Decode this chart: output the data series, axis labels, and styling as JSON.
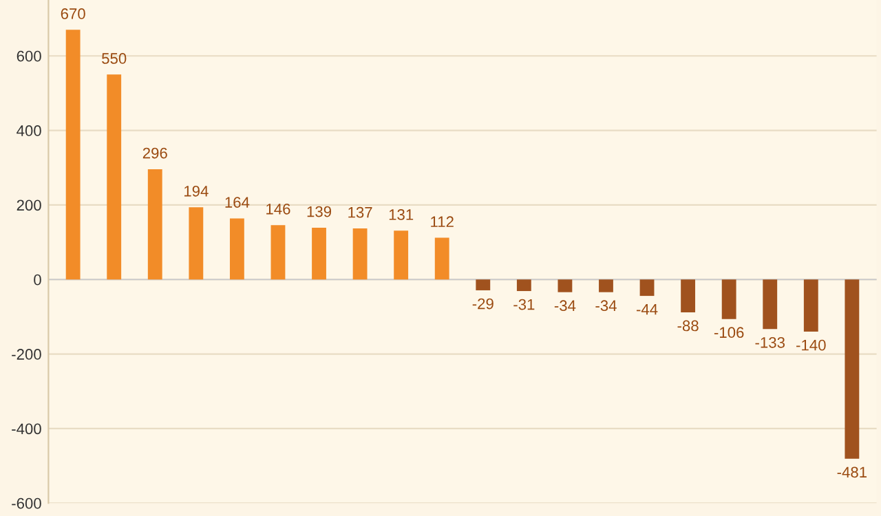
{
  "chart_data": {
    "type": "bar",
    "categories": [
      null,
      null,
      null,
      null,
      null,
      null,
      null,
      null,
      null,
      null,
      null,
      null,
      null,
      null,
      null,
      null,
      null,
      null,
      null,
      null
    ],
    "values": [
      670,
      550,
      296,
      194,
      164,
      146,
      139,
      137,
      131,
      112,
      -29,
      -31,
      -34,
      -34,
      -44,
      -88,
      -106,
      -133,
      -140,
      -481
    ],
    "colors": [
      "#f28c28",
      "#f28c28",
      "#f28c28",
      "#f28c28",
      "#f28c28",
      "#f28c28",
      "#f28c28",
      "#f28c28",
      "#f28c28",
      "#f28c28",
      "#a0521e",
      "#a0521e",
      "#a0521e",
      "#a0521e",
      "#a0521e",
      "#a0521e",
      "#a0521e",
      "#a0521e",
      "#a0521e",
      "#a0521e"
    ],
    "ylim": [
      -600,
      750
    ],
    "yticks": [
      -600,
      -400,
      -200,
      0,
      200,
      400,
      600
    ],
    "grid": "y",
    "data_labels": true
  }
}
